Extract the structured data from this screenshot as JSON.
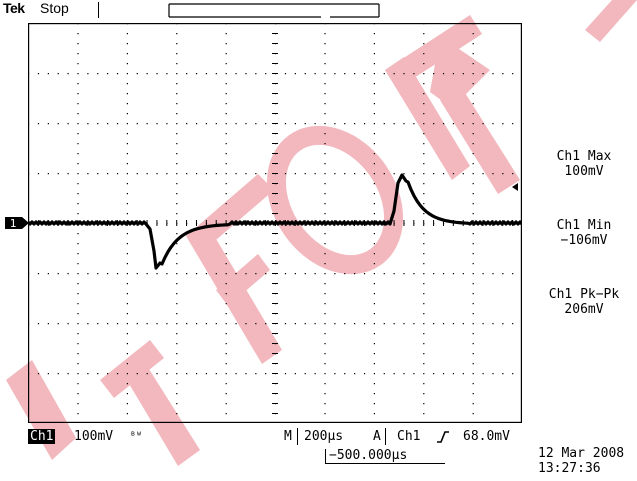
{
  "header": {
    "brand": "Tek",
    "acquisition_state": "Stop"
  },
  "display": {
    "channel_marker": "1",
    "grid": "dotted",
    "trace_color": "#000000",
    "watermark_color": "#f2b8be",
    "watermark_shapes": [
      "diagonal-band",
      "T",
      "F",
      "O",
      "R"
    ]
  },
  "measurements": [
    {
      "name": "Ch1 Max",
      "value": "100mV"
    },
    {
      "name": "Ch1 Min",
      "value": "−106mV"
    },
    {
      "name": "Ch1 Pk−Pk",
      "value": "206mV"
    }
  ],
  "status": {
    "channel": "Ch1",
    "volts_div": "100mV",
    "bw_icon": "ᴮᵂ",
    "timebase_prefix": "M",
    "timebase": "200µs",
    "trigger_prefix": "A",
    "trigger_source": "Ch1",
    "trigger_slope_icon": "rising-edge-icon",
    "trigger_level": "68.0mV",
    "horizontal_position": "−500.000µs"
  },
  "datetime": {
    "date": "12 Mar  2008",
    "time": "13:27:36"
  }
}
